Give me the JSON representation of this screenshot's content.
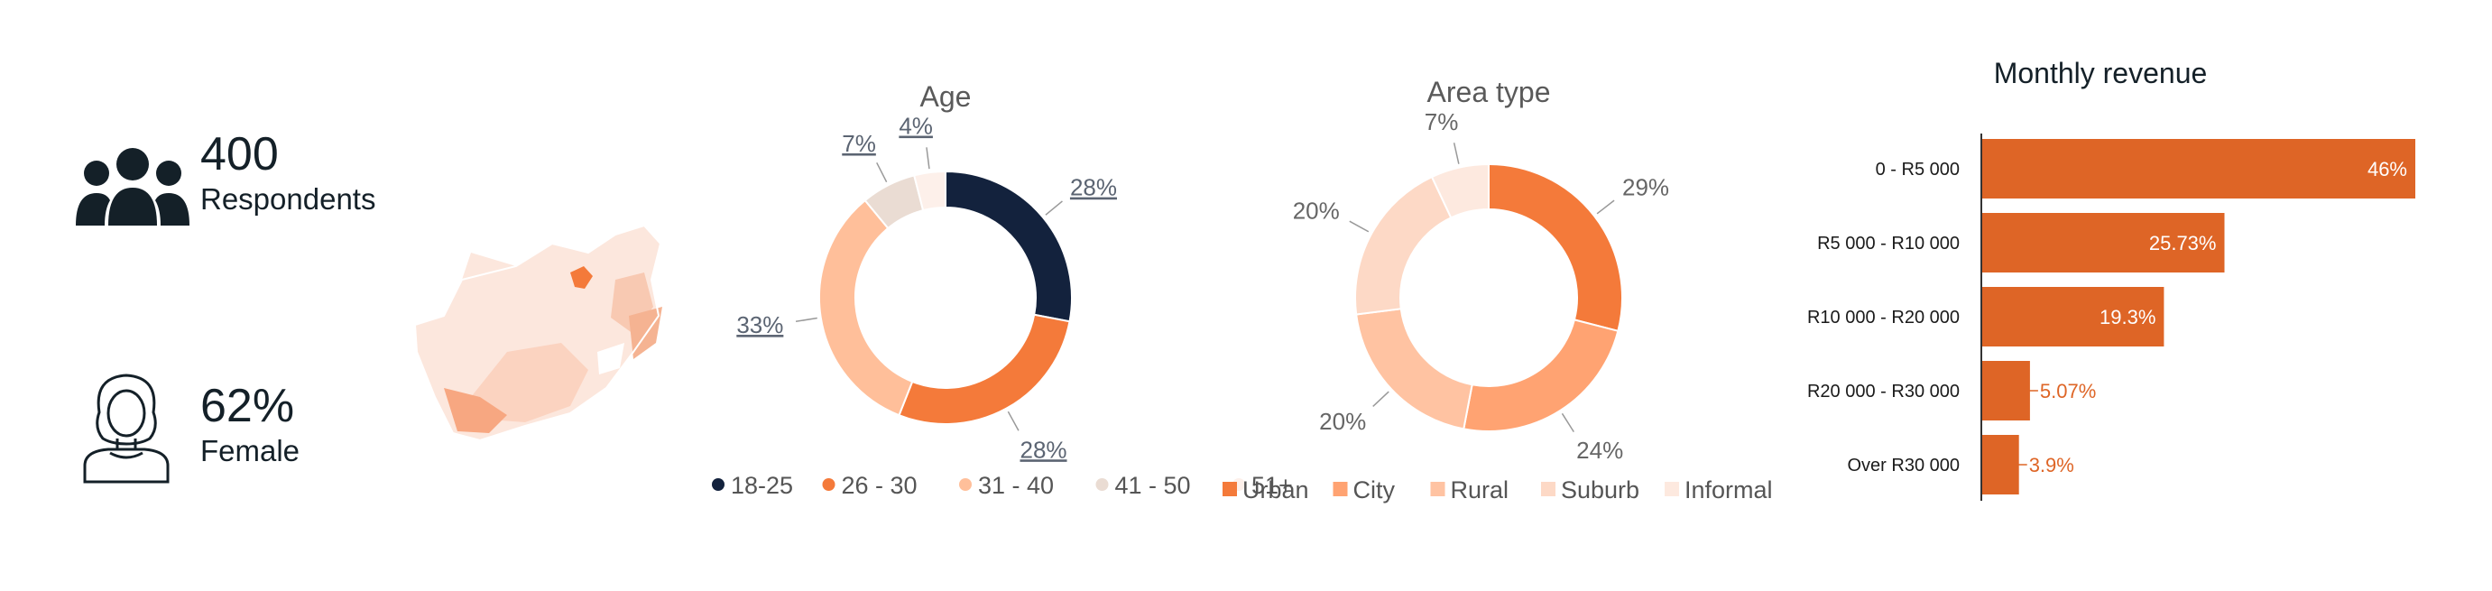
{
  "stats": {
    "respondents": {
      "value": "400",
      "label": "Respondents"
    },
    "female": {
      "value": "62%",
      "label": "Female"
    }
  },
  "icons": {
    "respondents": "people-group-icon",
    "female": "woman-avatar-icon",
    "map": "south-africa-map-icon"
  },
  "colors": {
    "navy": "#13223d",
    "orange": "#f47a3a",
    "peach": "#ffbf9a",
    "light_peach": "#eadcd3",
    "pale": "#fdf0ea",
    "bar": "#de6526"
  },
  "chart_data": [
    {
      "type": "pie",
      "title": "Age",
      "categories": [
        "18-25",
        "26 - 30",
        "31 - 40",
        "41 - 50",
        "51+"
      ],
      "values": [
        28,
        28,
        33,
        7,
        4
      ],
      "labels": [
        "28%",
        "28%",
        "33%",
        "7%",
        "4%"
      ],
      "colors": [
        "#13223d",
        "#f47a3a",
        "#ffbf9a",
        "#eadcd3",
        "#fdf0ea"
      ],
      "legend": "bottom"
    },
    {
      "type": "pie",
      "title": "Area type",
      "categories": [
        "Urban",
        "City",
        "Rural",
        "Suburb",
        "Informal"
      ],
      "values": [
        29,
        24,
        20,
        20,
        7
      ],
      "labels": [
        "29%",
        "24%",
        "20%",
        "20%",
        "7%"
      ],
      "colors": [
        "#f47a3a",
        "#ffa372",
        "#ffc3a2",
        "#fdd9c6",
        "#fde9df"
      ],
      "legend": "bottom"
    },
    {
      "type": "bar",
      "orientation": "horizontal",
      "title": "Monthly revenue",
      "categories": [
        "0 - R5 000",
        "R5 000 - R10 000",
        "R10 000 - R20 000",
        "R20 000 - R30 000",
        "Over R30 000"
      ],
      "values": [
        46,
        25.73,
        19.3,
        5.07,
        3.9
      ],
      "labels": [
        "46%",
        "25.73%",
        "19.3%",
        "5.07%",
        "3.9%"
      ],
      "xlim": [
        0,
        50
      ]
    }
  ]
}
